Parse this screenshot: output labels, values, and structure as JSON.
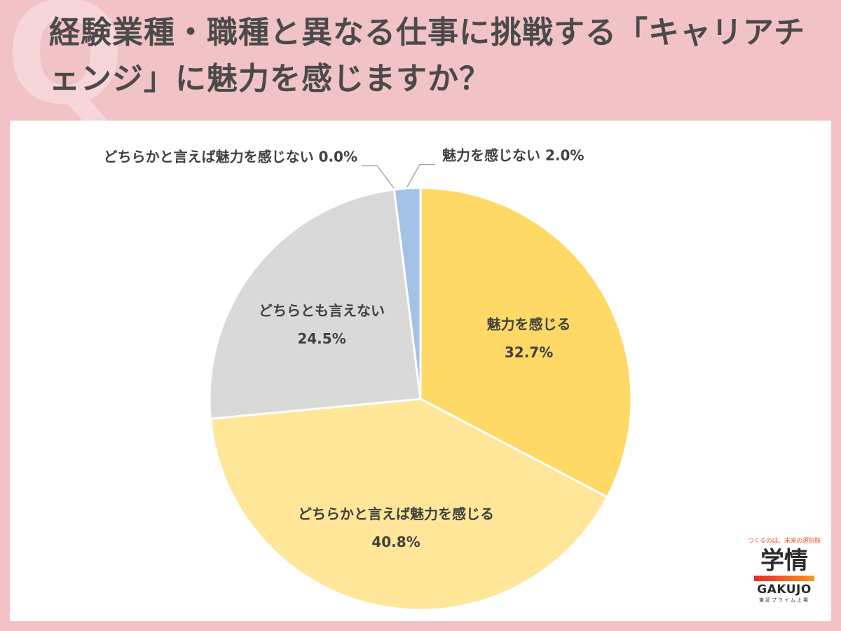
{
  "header": {
    "q_mark": "Q",
    "title": "経験業種・職種と異なる仕事に挑戦する「キャリアチェンジ」に魅力を感じますか？"
  },
  "chart_data": {
    "type": "pie",
    "title": "経験業種・職種と異なる仕事に挑戦する「キャリアチェンジ」に魅力を感じますか？",
    "start": "12 o'clock, clockwise",
    "slices": [
      {
        "label": "魅力を感じる",
        "value": 32.7,
        "value_label": "32.7%",
        "color": "#ffd966",
        "label_position": "inside"
      },
      {
        "label": "どちらかと言えば魅力を感じる",
        "value": 40.8,
        "value_label": "40.8%",
        "color": "#ffe699",
        "label_position": "inside"
      },
      {
        "label": "どちらとも言えない",
        "value": 24.5,
        "value_label": "24.5%",
        "color": "#d9d9d9",
        "label_position": "inside"
      },
      {
        "label": "どちらかと言えば魅力を感じない",
        "value": 0.0,
        "value_label": "0.0%",
        "color": "#bdd7ee",
        "label_position": "outside-left"
      },
      {
        "label": "魅力を感じない",
        "value": 2.0,
        "value_label": "2.0%",
        "color": "#a4c2e6",
        "label_position": "outside-right"
      }
    ]
  },
  "logo": {
    "tagline": "つくるのは、未来の選択肢",
    "kanji": "学情",
    "english": "GAKUJO",
    "sub": "東証プライム上場"
  }
}
